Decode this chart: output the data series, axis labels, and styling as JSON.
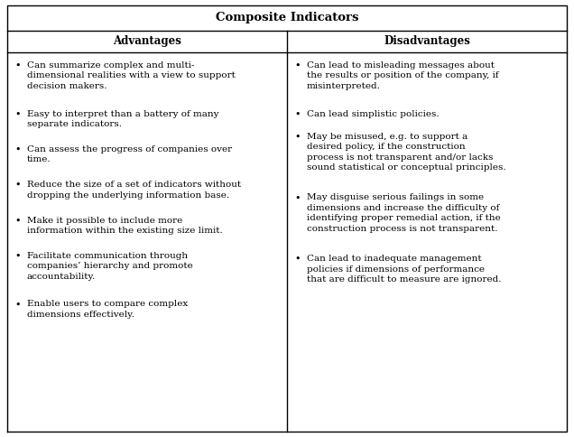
{
  "title": "Composite Indicators",
  "col_headers": [
    "Advantages",
    "Disadvantages"
  ],
  "advantages": [
    "Can summarize complex and multi-\ndimensional realities with a view to support\ndecision makers.",
    "Easy to interpret than a battery of many\nseparate indicators.",
    "Can assess the progress of companies over\ntime.",
    "Reduce the size of a set of indicators without\ndropping the underlying information base.",
    "Make it possible to include more\ninformation within the existing size limit.",
    "Facilitate communication through\ncompanies’ hierarchy and promote\naccountability.",
    "Enable users to compare complex\ndimensions effectively."
  ],
  "disadvantages": [
    "Can lead to misleading messages about\nthe results or position of the company, if\nmisinterpreted.",
    "Can lead simplistic policies.",
    "May be misused, e.g. to support a\ndesired policy, if the construction\nprocess is not transparent and/or lacks\nsound statistical or conceptual principles.",
    "May disguise serious failings in some\ndimensions and increase the difficulty of\nidentifying proper remedial action, if the\nconstruction process is not transparent.",
    "Can lead to inadequate management\npolicies if dimensions of performance\nthat are difficult to measure are ignored."
  ],
  "bg_color": "#ffffff",
  "border_color": "#000000",
  "text_color": "#000000",
  "title_fontsize": 9.5,
  "header_fontsize": 8.5,
  "cell_fontsize": 7.5
}
